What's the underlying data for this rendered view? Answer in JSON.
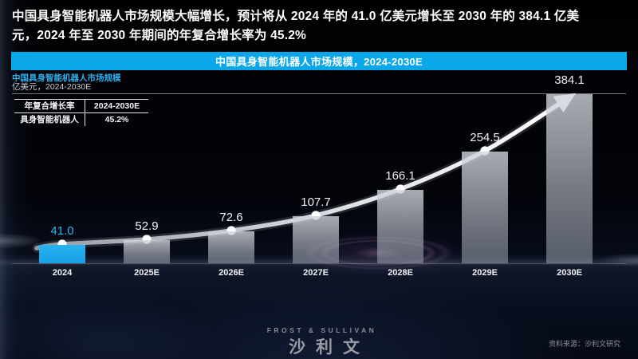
{
  "headline": {
    "line1": "中国具身智能机器人市场规模大幅增长，预计将从 2024 年的 41.0 亿美元增长至 2030 年的 384.1 亿美",
    "line2": "元，2024 年至 2030 年期间的年复合增长率为 45.2%"
  },
  "banner": {
    "title": "中国具身智能机器人市场规模，2024-2030E"
  },
  "chart_header": {
    "title": "中国具身智能机器人市场规模",
    "unit_line": "亿美元，2024-2030E"
  },
  "cagr_table": {
    "header_label": "年复合增长率",
    "header_value": "2024-2030E",
    "row_label": "具身智能机器人",
    "row_value": "45.2%"
  },
  "chart_data": {
    "type": "bar",
    "title": "中国具身智能机器人市场规模，2024-2030E",
    "ylabel": "亿美元",
    "categories": [
      "2024",
      "2025E",
      "2026E",
      "2027E",
      "2028E",
      "2029E",
      "2030E"
    ],
    "values": [
      41.0,
      52.9,
      72.6,
      107.7,
      166.1,
      254.5,
      384.1
    ],
    "value_labels": [
      "41.0",
      "52.9",
      "72.6",
      "107.7",
      "166.1",
      "254.5",
      "384.1"
    ],
    "ylim": [
      0,
      390
    ],
    "grid": false,
    "legend": "none",
    "highlight_index": 0,
    "trend_line": "smooth curve through bar tops ending in an up-right arrow at 2030E",
    "colors": {
      "highlight_bar": "#1ba9ea",
      "default_bar": "#a8aeb8",
      "highlight_label": "#31b4f2",
      "value_label": "#eef0f3",
      "trend_line": "#ffffff"
    }
  },
  "footer": {
    "logo_line1": "FROST & SULLIVAN",
    "logo_line2": "沙利文",
    "source": "资料来源：沙利文研究"
  },
  "colors": {
    "accent": "#0aa8eb",
    "subtitle": "#2fb0ef"
  }
}
